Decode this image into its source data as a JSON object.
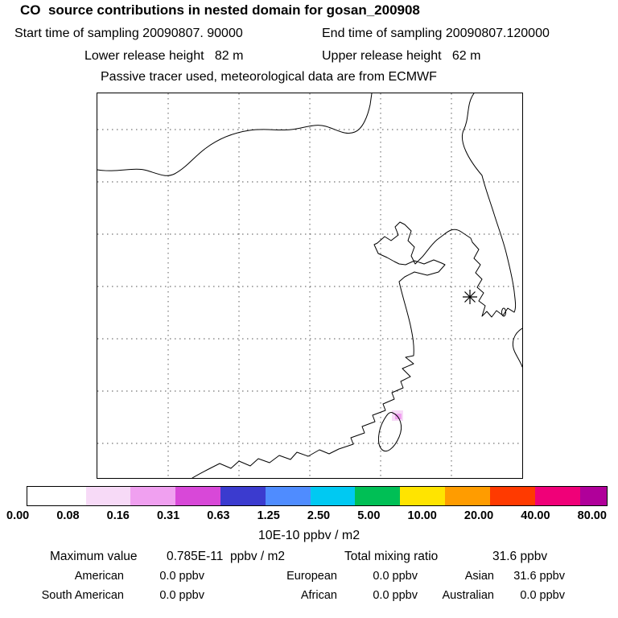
{
  "header": {
    "title": "CO  source contributions in nested domain for gosan_200908",
    "start_time": "Start time of sampling 20090807. 90000",
    "end_time": "End time of sampling 20090807.120000",
    "lower_height": "Lower release height   82 m",
    "upper_height": "Upper release height   62 m",
    "tracer_line": "Passive tracer used, meteorological data are from ECMWF"
  },
  "map": {
    "receptor_marker": "gosan receptor location",
    "contribution_patch": "small source contribution area near Taiwan"
  },
  "colorbar": {
    "tick_labels": [
      "0.00",
      "0.08",
      "0.16",
      "0.31",
      "0.63",
      "1.25",
      "2.50",
      "5.00",
      "10.00",
      "20.00",
      "40.00",
      "80.00"
    ],
    "colors": [
      "#ffffff",
      "#f7daf7",
      "#f0a0f0",
      "#d848d8",
      "#3b3bcf",
      "#4f8cff",
      "#00c9f2",
      "#00bf55",
      "#ffe400",
      "#ff9c00",
      "#ff3a00",
      "#f00078",
      "#b0009a"
    ],
    "units_label": "10E-10 ppbv / m2"
  },
  "stats": {
    "max_label": "Maximum value",
    "max_value": "0.785E-11  ppbv / m2",
    "total_label": "Total mixing ratio",
    "total_value": "31.6 ppbv",
    "contributions": [
      {
        "label": "American",
        "value": "0.0 ppbv"
      },
      {
        "label": "European",
        "value": "0.0 ppbv"
      },
      {
        "label": "Asian",
        "value": "31.6 ppbv"
      },
      {
        "label": "South American",
        "value": "0.0 ppbv"
      },
      {
        "label": "African",
        "value": "0.0 ppbv"
      },
      {
        "label": "Australian",
        "value": "0.0 ppbv"
      }
    ]
  },
  "chart_data": {
    "type": "heatmap",
    "title": "CO  source contributions in nested domain for gosan_200908",
    "receptor": "gosan_200908",
    "sampling_start": "20090807. 90000",
    "sampling_end": "20090807.120000",
    "lower_release_height_m": 82,
    "upper_release_height_m": 62,
    "tracer": "Passive tracer used, meteorological data are from ECMWF",
    "colorbar_ticks": [
      0.0,
      0.08,
      0.16,
      0.31,
      0.63,
      1.25,
      2.5,
      5.0,
      10.0,
      20.0,
      40.0,
      80.0
    ],
    "colorbar_units": "10E-10 ppbv / m2",
    "maximum_value": "0.785E-11 ppbv / m2",
    "total_mixing_ratio_ppbv": 31.6,
    "contributions_ppbv": {
      "American": 0.0,
      "European": 0.0,
      "Asian": 31.6,
      "South American": 0.0,
      "African": 0.0,
      "Australian": 0.0
    },
    "legend_position": "bottom",
    "grid": "dashed lat/lon gridlines over East Asia map"
  }
}
